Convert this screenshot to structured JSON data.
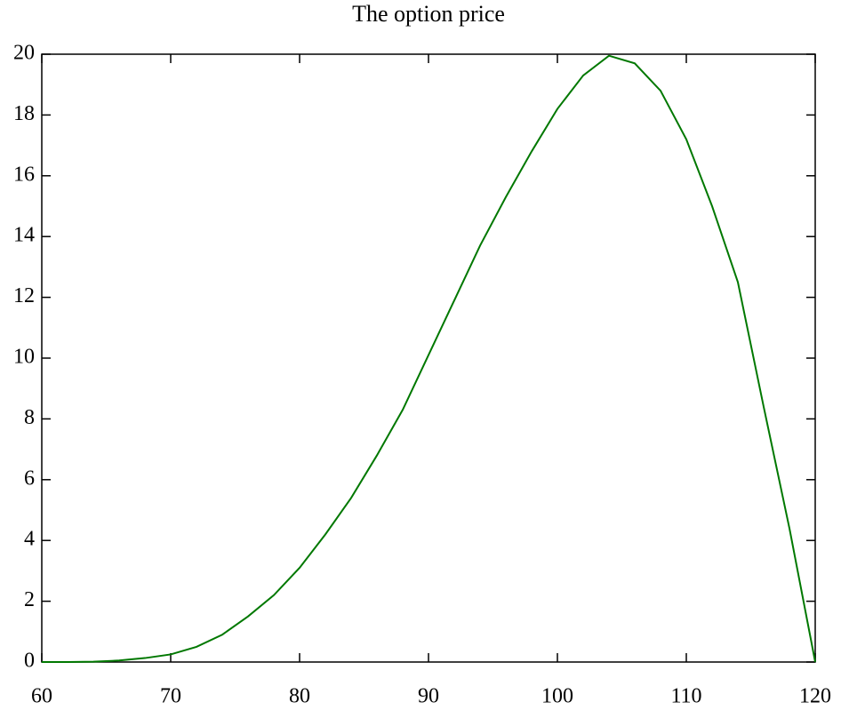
{
  "chart_data": {
    "type": "line",
    "title": "The option price",
    "x": [
      60,
      62,
      64,
      66,
      68,
      70,
      72,
      74,
      76,
      78,
      80,
      82,
      84,
      86,
      88,
      90,
      92,
      94,
      96,
      98,
      100,
      102,
      104,
      106,
      108,
      110,
      112,
      114,
      116,
      118,
      120
    ],
    "series": [
      {
        "color": "#007800",
        "values": [
          0,
          0,
          0.01,
          0.05,
          0.13,
          0.25,
          0.5,
          0.9,
          1.5,
          2.2,
          3.1,
          4.2,
          5.4,
          6.8,
          8.3,
          10.1,
          11.9,
          13.7,
          15.3,
          16.8,
          18.2,
          19.3,
          19.95,
          19.7,
          18.8,
          17.2,
          15.0,
          12.5,
          8.4,
          4.4,
          0
        ]
      }
    ],
    "xlim": [
      60,
      120
    ],
    "xticks": [
      60,
      70,
      80,
      90,
      100,
      110,
      120
    ],
    "ylim": [
      0,
      20
    ],
    "yticks": [
      0,
      2,
      4,
      6,
      8,
      10,
      12,
      14,
      16,
      18,
      20
    ]
  }
}
